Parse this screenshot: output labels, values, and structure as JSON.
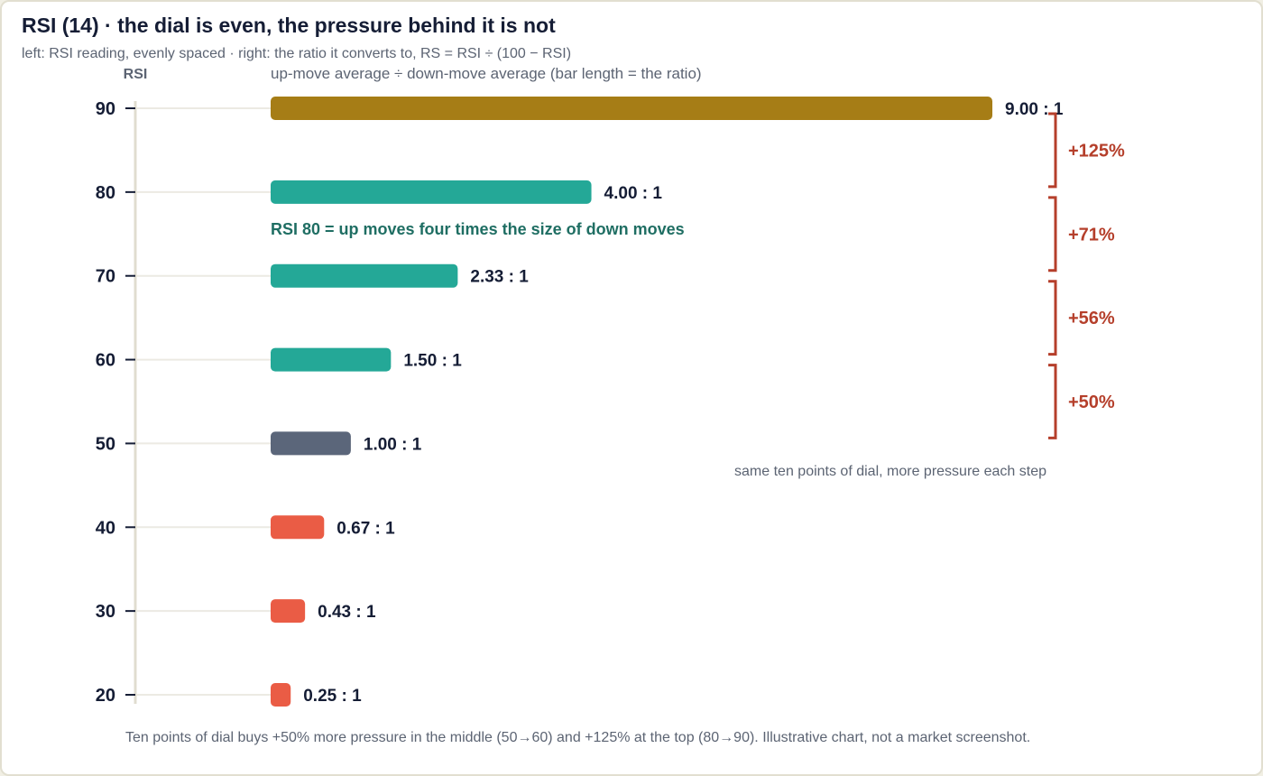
{
  "title": "RSI (14)  ·  the dial is even, the pressure behind it is not",
  "subtitle": "left: RSI reading, evenly spaced  ·  right: the ratio it converts to, RS = RSI ÷ (100 − RSI)",
  "footnote": "Ten points of dial buys +50% more pressure in the middle (50→60) and +125% at the top (80→90). Illustrative chart, not a market screenshot.",
  "colors": {
    "top": "#a67d16",
    "bullish": "#24a897",
    "neutral": "#5b667a",
    "bearish": "#ea5c45",
    "bracket": "#b53f2b",
    "annotation": "#1f6e63",
    "axis": "#e0ddd0",
    "gridline": "#eceae3",
    "text": "#151d35",
    "muted": "#5c6473"
  },
  "chart_data": {
    "type": "bar",
    "orientation": "horizontal",
    "ylabel": "RSI",
    "xlabel": "up-move average ÷ down-move average (bar length = the ratio)",
    "categories": [
      90,
      80,
      70,
      60,
      50,
      40,
      30,
      20
    ],
    "values": [
      9.0,
      4.0,
      2.333,
      1.5,
      1.0,
      0.667,
      0.429,
      0.25
    ],
    "value_labels": [
      "9.00 : 1",
      "4.00 : 1",
      "2.33 : 1",
      "1.50 : 1",
      "1.00 : 1",
      "0.67 : 1",
      "0.43 : 1",
      "0.25 : 1"
    ],
    "bar_colors": [
      "top",
      "bullish",
      "bullish",
      "bullish",
      "neutral",
      "bearish",
      "bearish",
      "bearish"
    ],
    "xlim": [
      0,
      9
    ],
    "brackets": [
      {
        "from": 90,
        "to": 80,
        "label": "+125%"
      },
      {
        "from": 80,
        "to": 70,
        "label": "+71%"
      },
      {
        "from": 70,
        "to": 60,
        "label": "+56%"
      },
      {
        "from": 60,
        "to": 50,
        "label": "+50%"
      }
    ],
    "annotations": [
      {
        "text": "RSI 80 = up moves four times the size of down moves"
      },
      {
        "text": "same ten points of dial, more pressure each step"
      }
    ]
  }
}
